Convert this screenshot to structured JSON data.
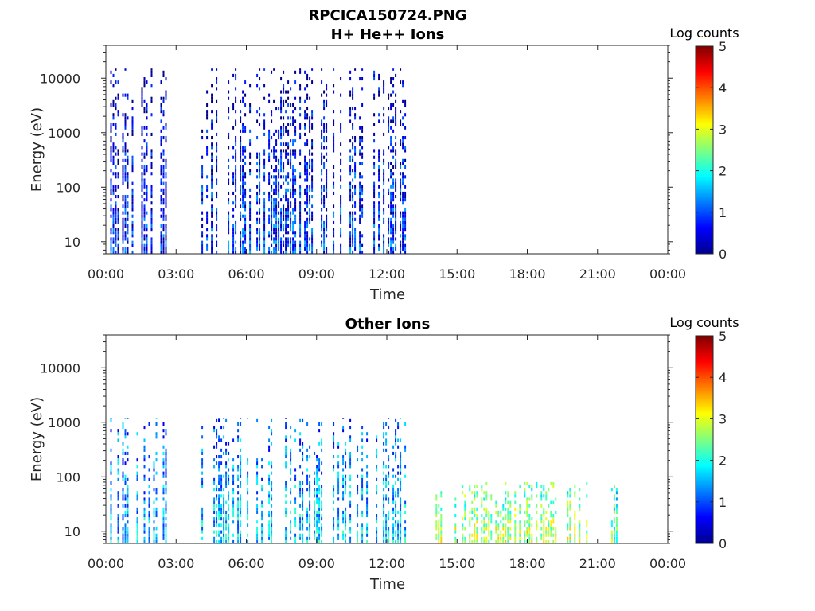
{
  "figure": {
    "filename": "RPCICA150724.PNG"
  },
  "chart_data": [
    {
      "type": "heatmap",
      "title": "H+ He++ Ions",
      "xlabel": "Time",
      "ylabel": "Energy (eV)",
      "y_scale": "log",
      "ylim": [
        6,
        40000
      ],
      "xlim": [
        "00:00",
        "24:00"
      ],
      "x_ticks": [
        "00:00",
        "03:00",
        "06:00",
        "09:00",
        "12:00",
        "15:00",
        "18:00",
        "21:00",
        "00:00"
      ],
      "y_ticks": [
        {
          "value": 10,
          "label": "10"
        },
        {
          "value": 100,
          "label": "100"
        },
        {
          "value": 1000,
          "label": "1000"
        },
        {
          "value": 10000,
          "label": "10000"
        }
      ],
      "colorbar": {
        "label": "Log counts",
        "min": 0,
        "max": 5,
        "ticks": [
          "0",
          "1",
          "2",
          "3",
          "4",
          "5"
        ],
        "colormap": "jet"
      },
      "data_intervals": [
        {
          "start": "00:05",
          "end": "02:35",
          "emax": 15000,
          "level": 0.8
        },
        {
          "start": "04:05",
          "end": "12:55",
          "emax": 15000,
          "level": 0.9
        }
      ]
    },
    {
      "type": "heatmap",
      "title": "Other Ions",
      "xlabel": "Time",
      "ylabel": "Energy (eV)",
      "y_scale": "log",
      "ylim": [
        6,
        40000
      ],
      "xlim": [
        "00:00",
        "24:00"
      ],
      "x_ticks": [
        "00:00",
        "03:00",
        "06:00",
        "09:00",
        "12:00",
        "15:00",
        "18:00",
        "21:00",
        "00:00"
      ],
      "y_ticks": [
        {
          "value": 10,
          "label": "10"
        },
        {
          "value": 100,
          "label": "100"
        },
        {
          "value": 1000,
          "label": "1000"
        },
        {
          "value": 10000,
          "label": "10000"
        }
      ],
      "colorbar": {
        "label": "Log counts",
        "min": 0,
        "max": 5,
        "ticks": [
          "0",
          "1",
          "2",
          "3",
          "4",
          "5"
        ],
        "colormap": "jet"
      },
      "data_intervals": [
        {
          "start": "00:05",
          "end": "02:35",
          "emax": 1200,
          "level": 1.6
        },
        {
          "start": "04:05",
          "end": "12:55",
          "emax": 1200,
          "level": 1.7
        },
        {
          "start": "14:05",
          "end": "20:35",
          "emax": 80,
          "level": 2.8
        },
        {
          "start": "21:35",
          "end": "22:15",
          "emax": 80,
          "level": 2.4
        }
      ]
    }
  ]
}
